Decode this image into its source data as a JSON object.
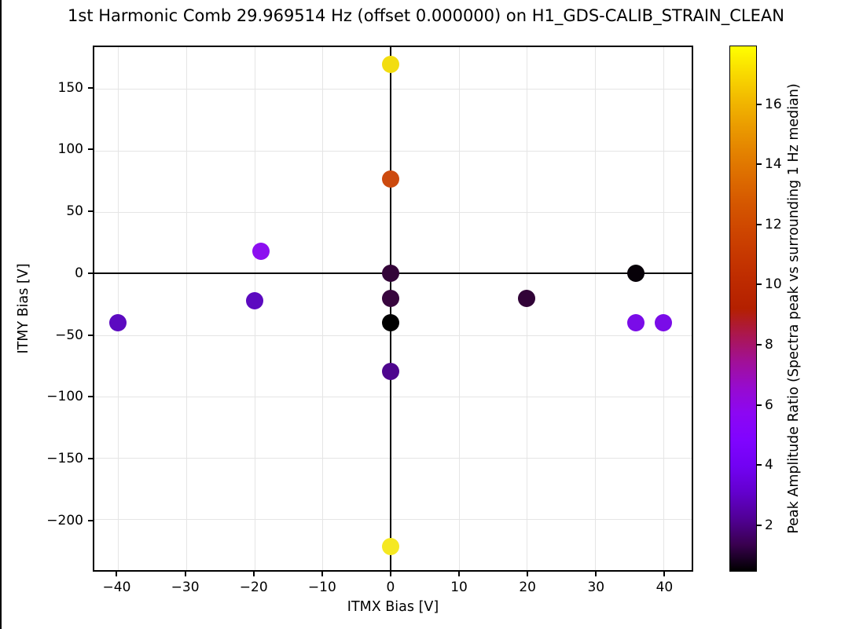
{
  "title": "1st Harmonic Comb 29.969514 Hz (offset 0.000000) on H1_GDS-CALIB_STRAIN_CLEAN",
  "colors": {
    "background": "#ffffff",
    "spine": "#000000",
    "grid": "#e5e5e5",
    "zero_line": "#000000"
  },
  "chart_data": {
    "type": "scatter",
    "title": "1st Harmonic Comb 29.969514 Hz (offset 0.000000) on H1_GDS-CALIB_STRAIN_CLEAN",
    "xlabel": "ITMX Bias [V]",
    "ylabel": "ITMY Bias [V]",
    "xlim": [
      -43.5,
      44.2
    ],
    "ylim": [
      -241.3,
      184.1
    ],
    "x_ticks": [
      -40,
      -30,
      -20,
      -10,
      0,
      10,
      20,
      30,
      40
    ],
    "y_ticks": [
      -200,
      -150,
      -100,
      -50,
      0,
      50,
      100,
      150
    ],
    "grid": true,
    "zero_lines": true,
    "marker_size_px": 22,
    "points": [
      {
        "x": 0,
        "y": 170,
        "value": 16.6,
        "color": "#f2dd10"
      },
      {
        "x": 0,
        "y": 77,
        "value": 11.5,
        "color": "#cc4a0e"
      },
      {
        "x": -19,
        "y": 18,
        "value": 5.8,
        "color": "#8c0ff0"
      },
      {
        "x": 0,
        "y": 0,
        "value": 1.4,
        "color": "#330438"
      },
      {
        "x": 36,
        "y": 0,
        "value": 0.8,
        "color": "#070108"
      },
      {
        "x": -20,
        "y": -22,
        "value": 3.0,
        "color": "#5c0ac0"
      },
      {
        "x": 0,
        "y": -20,
        "value": 1.5,
        "color": "#38063e"
      },
      {
        "x": 20,
        "y": -20,
        "value": 1.3,
        "color": "#310337"
      },
      {
        "x": -40,
        "y": -40,
        "value": 3.0,
        "color": "#5c0ac0"
      },
      {
        "x": 0,
        "y": -40,
        "value": 0.5,
        "color": "#000000"
      },
      {
        "x": 36,
        "y": -40,
        "value": 4.4,
        "color": "#7a0ce8"
      },
      {
        "x": 40,
        "y": -40,
        "value": 4.4,
        "color": "#7a0ce8"
      },
      {
        "x": 0,
        "y": -80,
        "value": 2.3,
        "color": "#4e068e"
      },
      {
        "x": 0,
        "y": -222,
        "value": 17.5,
        "color": "#f5e822"
      }
    ],
    "colorbar": {
      "label": "Peak Amplitude Ratio (Spectra peak vs surrounding 1 Hz median)",
      "vmin": 0.45,
      "vmax": 17.95,
      "ticks": [
        2,
        4,
        6,
        8,
        10,
        12,
        14,
        16
      ],
      "colormap": "gnuplot",
      "gradient_stops": [
        [
          0.0,
          "#000000"
        ],
        [
          0.05,
          "#39004f"
        ],
        [
          0.1,
          "#510096"
        ],
        [
          0.15,
          "#6300ce"
        ],
        [
          0.2,
          "#7202f3"
        ],
        [
          0.25,
          "#8004ff"
        ],
        [
          0.3,
          "#8c07f3"
        ],
        [
          0.35,
          "#970bce"
        ],
        [
          0.4,
          "#a11096"
        ],
        [
          0.45,
          "#ab174f"
        ],
        [
          0.5,
          "#b42000"
        ],
        [
          0.55,
          "#bd2a00"
        ],
        [
          0.6,
          "#c63700"
        ],
        [
          0.65,
          "#ce4600"
        ],
        [
          0.7,
          "#d55700"
        ],
        [
          0.75,
          "#dd6c00"
        ],
        [
          0.8,
          "#e48300"
        ],
        [
          0.85,
          "#eb9d00"
        ],
        [
          0.9,
          "#f2ba00"
        ],
        [
          0.95,
          "#f9db00"
        ],
        [
          1.0,
          "#ffff00"
        ]
      ]
    }
  }
}
